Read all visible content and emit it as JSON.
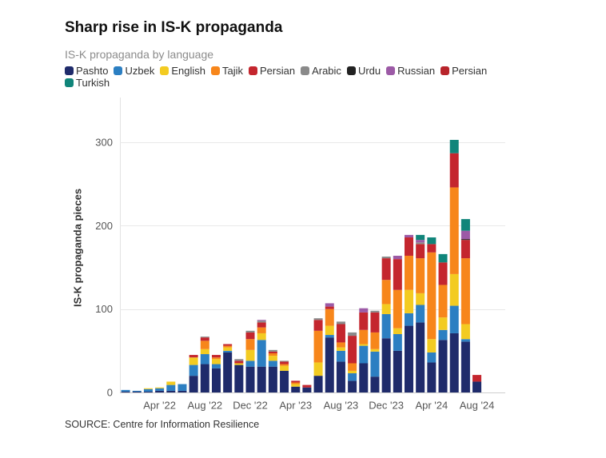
{
  "chart_data": {
    "type": "bar",
    "stacked": true,
    "title": "Sharp rise in IS-K propaganda",
    "subtitle": "IS-K propaganda by language",
    "ylabel": "IS-K propaganda pieces",
    "ylim": [
      0,
      350
    ],
    "yticks": [
      0,
      100,
      200,
      300
    ],
    "xlim": [
      -0.5,
      33.5
    ],
    "x": [
      0,
      1,
      2,
      3,
      4,
      5,
      6,
      7,
      8,
      9,
      10,
      11,
      12,
      13,
      14,
      15,
      16,
      17,
      18,
      19,
      20,
      21,
      22,
      23,
      24,
      25,
      26,
      27,
      28,
      29,
      30,
      31
    ],
    "x_ticks": [
      {
        "label": "Apr '22",
        "x": 3
      },
      {
        "label": "Aug '22",
        "x": 7
      },
      {
        "label": "Dec '22",
        "x": 11
      },
      {
        "label": "Apr '23",
        "x": 15
      },
      {
        "label": "Aug '23",
        "x": 19
      },
      {
        "label": "Dec '23",
        "x": 23
      },
      {
        "label": "Apr '24",
        "x": 27
      },
      {
        "label": "Aug '24",
        "x": 31
      }
    ],
    "grid": true,
    "legend": "top-left",
    "series": [
      {
        "name": "Pashto",
        "color": "#1f2b6b",
        "values": [
          1,
          1,
          1,
          2,
          2,
          2,
          20,
          34,
          29,
          48,
          33,
          31,
          31,
          31,
          26,
          7,
          6,
          20,
          66,
          37,
          14,
          35,
          19,
          65,
          50,
          80,
          84,
          36,
          63,
          71,
          61,
          13
        ]
      },
      {
        "name": "Uzbek",
        "color": "#2c7fc2",
        "values": [
          2,
          1,
          3,
          3,
          7,
          8,
          13,
          12,
          5,
          2,
          0,
          7,
          32,
          7,
          0,
          0,
          0,
          0,
          3,
          13,
          9,
          21,
          30,
          29,
          20,
          15,
          21,
          12,
          12,
          33,
          3,
          0
        ]
      },
      {
        "name": "English",
        "color": "#f3cb21",
        "values": [
          0,
          0,
          1,
          1,
          4,
          0,
          9,
          6,
          6,
          4,
          2,
          13,
          8,
          6,
          6,
          3,
          0,
          16,
          11,
          4,
          3,
          2,
          3,
          12,
          7,
          28,
          14,
          16,
          15,
          38,
          18,
          0
        ]
      },
      {
        "name": "Tajik",
        "color": "#f7861b",
        "values": [
          0,
          0,
          0,
          0,
          0,
          0,
          0,
          10,
          2,
          2,
          0,
          13,
          7,
          3,
          2,
          2,
          0,
          38,
          20,
          6,
          9,
          17,
          20,
          29,
          46,
          41,
          42,
          104,
          39,
          104,
          79,
          0
        ]
      },
      {
        "name": "Persian",
        "color": "#c4262e",
        "values": [
          0,
          0,
          0,
          0,
          0,
          0,
          3,
          4,
          3,
          2,
          3,
          8,
          6,
          2,
          3,
          2,
          3,
          13,
          3,
          22,
          33,
          21,
          24,
          26,
          37,
          22,
          17,
          10,
          27,
          41,
          22,
          8
        ]
      },
      {
        "name": "Arabic",
        "color": "#8a8a8a",
        "values": [
          0,
          0,
          0,
          0,
          0,
          0,
          0,
          1,
          0,
          0,
          2,
          2,
          2,
          2,
          1,
          0,
          0,
          2,
          0,
          3,
          4,
          0,
          2,
          2,
          0,
          0,
          2,
          0,
          0,
          0,
          0,
          0
        ]
      },
      {
        "name": "Urdu",
        "color": "#222222",
        "values": [
          0,
          0,
          0,
          0,
          0,
          0,
          0,
          0,
          0,
          0,
          0,
          0,
          0,
          0,
          0,
          0,
          0,
          0,
          0,
          0,
          0,
          0,
          0,
          0,
          0,
          0,
          0,
          0,
          0,
          0,
          1,
          0
        ]
      },
      {
        "name": "Russian",
        "color": "#9c5aa6",
        "values": [
          0,
          0,
          0,
          0,
          0,
          0,
          0,
          0,
          0,
          0,
          0,
          0,
          1,
          0,
          0,
          0,
          0,
          0,
          4,
          0,
          0,
          5,
          0,
          0,
          4,
          3,
          3,
          0,
          0,
          0,
          10,
          0
        ]
      },
      {
        "name": "Persian",
        "color": "#b8242b",
        "values": [
          0,
          0,
          0,
          0,
          0,
          0,
          0,
          0,
          0,
          0,
          0,
          0,
          0,
          0,
          0,
          0,
          0,
          0,
          0,
          0,
          0,
          0,
          0,
          0,
          0,
          0,
          0,
          0,
          0,
          0,
          0,
          0
        ]
      },
      {
        "name": "Turkish",
        "color": "#10857a",
        "values": [
          0,
          0,
          0,
          0,
          0,
          0,
          0,
          0,
          0,
          0,
          0,
          0,
          0,
          0,
          0,
          0,
          0,
          0,
          0,
          0,
          0,
          0,
          0,
          0,
          0,
          0,
          6,
          8,
          10,
          16,
          14,
          0
        ]
      }
    ]
  },
  "source": "SOURCE: Centre for Information Resilience"
}
